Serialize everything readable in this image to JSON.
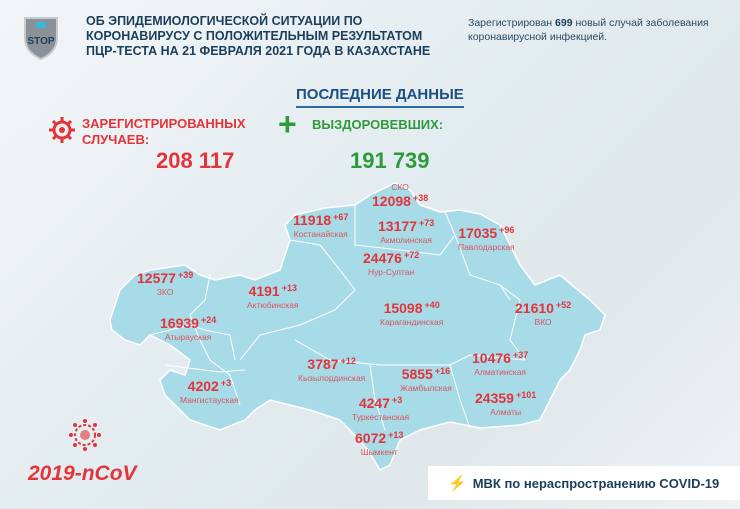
{
  "header": {
    "title_lines": [
      "ОБ ЭПИДЕМИОЛОГИЧЕСКОЙ СИТУАЦИИ ПО",
      "КОРОНАВИРУСУ С ПОЛОЖИТЕЛЬНЫМ РЕЗУЛЬТАТОМ",
      "ПЦР-ТЕСТА НА 21 ФЕВРАЛЯ 2021 ГОДА В КАЗАХСТАНЕ"
    ],
    "note_prefix": "Зарегистрирован ",
    "note_count": "699",
    "note_suffix": " новый случай заболевания коронавирусной инфекцией.",
    "logo_text": "STOP"
  },
  "latest_title": "ПОСЛЕДНИЕ ДАННЫЕ",
  "registered": {
    "label_lines": [
      "ЗАРЕГИСТРИРОВАННЫХ",
      "СЛУЧАЕВ:"
    ],
    "value": "208 117"
  },
  "recovered": {
    "label": "ВЫЗДОРОВЕВШИХ:",
    "value": "191 739"
  },
  "regions": [
    {
      "name": "СКО",
      "count": "12098",
      "delta": "+38"
    },
    {
      "name": "Костанайская",
      "count": "11918",
      "delta": "+67"
    },
    {
      "name": "Акмолинская",
      "count": "13177",
      "delta": "+73"
    },
    {
      "name": "Нур-Султан",
      "count": "24476",
      "delta": "+72"
    },
    {
      "name": "Павлодарская",
      "count": "17035",
      "delta": "+96"
    },
    {
      "name": "ЗКО",
      "count": "12577",
      "delta": "+39"
    },
    {
      "name": "Актюбинская",
      "count": "4191",
      "delta": "+13"
    },
    {
      "name": "Атырауская",
      "count": "16939",
      "delta": "+24"
    },
    {
      "name": "Карагандинская",
      "count": "15098",
      "delta": "+40"
    },
    {
      "name": "ВКО",
      "count": "21610",
      "delta": "+52"
    },
    {
      "name": "Алматинская",
      "count": "10476",
      "delta": "+37"
    },
    {
      "name": "Кызылординская",
      "count": "3787",
      "delta": "+12"
    },
    {
      "name": "Жамбылская",
      "count": "5855",
      "delta": "+16"
    },
    {
      "name": "Мангистауская",
      "count": "4202",
      "delta": "+3"
    },
    {
      "name": "Туркестанская",
      "count": "4247",
      "delta": "+3"
    },
    {
      "name": "Алматы",
      "count": "24359",
      "delta": "+101"
    },
    {
      "name": "Шымкент",
      "count": "6072",
      "delta": "+13"
    }
  ],
  "footer": {
    "ncov": "2019-nCoV",
    "mvk": "МВК по нераспространению COVID-19"
  },
  "colors": {
    "red": "#e3343a",
    "green": "#2e9a3a",
    "map": "#a8dbe8",
    "navy": "#1c3e5a"
  }
}
